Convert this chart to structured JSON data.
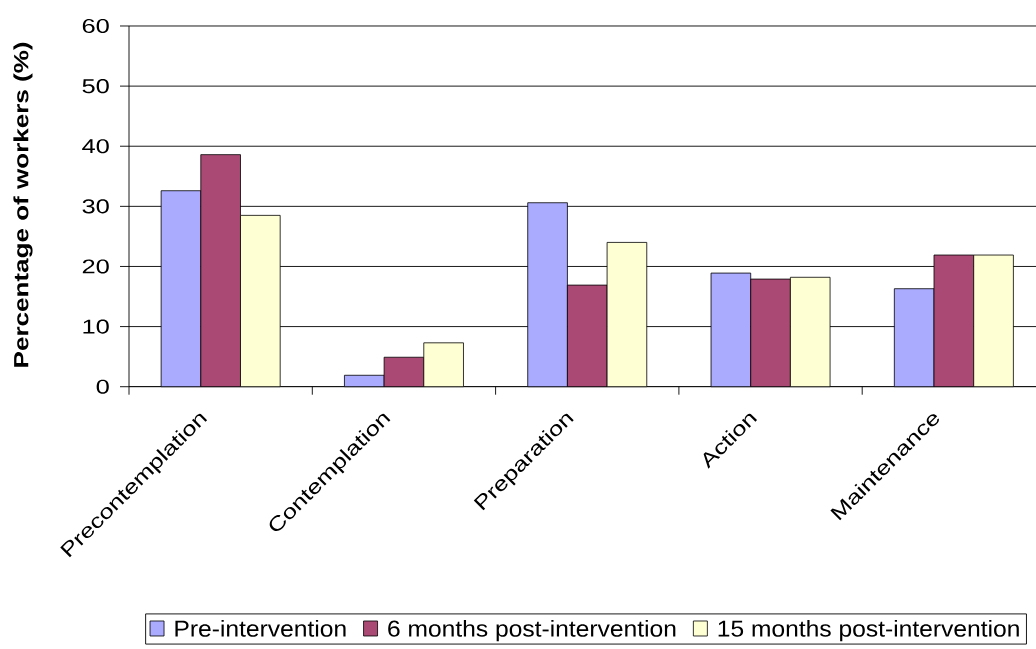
{
  "chart_data": {
    "type": "bar",
    "categories": [
      "Precontemplation",
      "Contemplation",
      "Preparation",
      "Action",
      "Maintenance"
    ],
    "series": [
      {
        "name": "Pre-intervention",
        "color": "#aaaaff",
        "values": [
          32.6,
          1.9,
          30.6,
          18.9,
          16.3
        ]
      },
      {
        "name": "6 months post-intervention",
        "color": "#aa4a74",
        "values": [
          38.6,
          4.9,
          16.9,
          17.9,
          21.9
        ]
      },
      {
        "name": "15 months post-intervention",
        "color": "#ffffd4",
        "values": [
          28.5,
          7.3,
          24.0,
          18.2,
          21.9
        ]
      }
    ],
    "ylabel": "Percentage of workers (%)",
    "ylim": [
      0,
      60
    ],
    "yticks": [
      0,
      10,
      20,
      30,
      40,
      50,
      60
    ],
    "grid": "y",
    "legend": "bottom"
  }
}
